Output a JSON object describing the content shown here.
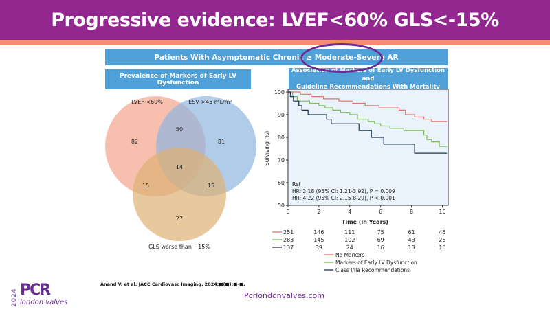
{
  "slide": {
    "title": "Progressive evidence: LVEF<60% GLS<-15%",
    "colors": {
      "header": "#92278f",
      "accent_band": "#f68b6a",
      "banner": "#4f9fd8",
      "highlight": "#6a2c91"
    }
  },
  "banners": {
    "top": "Patients With Asymptomatic Chronic ≥ Moderate-Severe AR",
    "left": "Prevalence of Markers of Early LV Dysfunction",
    "right_line1": "Association of Markers of Early LV Dysfunction and",
    "right_line2": "Guideline Recommendations With Mortality"
  },
  "footer": {
    "citation": "Anand V. et al. JACC Cardiovasc Imaging. 2024:■(■):■-■.",
    "website": "Pcrlondonvalves.com",
    "logo_year": "2024",
    "logo_brand": "PCR",
    "logo_sub": "london valves"
  },
  "chart_data": [
    {
      "type": "venn",
      "title": "Prevalence of Markers of Early LV Dysfunction",
      "sets": [
        {
          "name": "LVEF <60%",
          "color": "#f4a48a"
        },
        {
          "name": "ESV >45 mL/m²",
          "color": "#8fb6e0"
        },
        {
          "name": "GLS worse than −15%",
          "color": "#deb074"
        }
      ],
      "regions": {
        "LVEF_only": 82,
        "ESV_only": 81,
        "GLS_only": 27,
        "LVEF_ESV": 50,
        "LVEF_GLS": 15,
        "ESV_GLS": 15,
        "all_three": 14
      }
    },
    {
      "type": "line",
      "subtype": "kaplan-meier",
      "title": "Association of Markers of Early LV Dysfunction and Guideline Recommendations With Mortality",
      "xlabel": "Time (in Years)",
      "ylabel": "Surviving (%)",
      "xlim": [
        0,
        10.3
      ],
      "ylim": [
        50,
        100
      ],
      "xticks": [
        0,
        2,
        4,
        6,
        8,
        10
      ],
      "yticks": [
        50,
        60,
        70,
        80,
        90,
        100
      ],
      "series": [
        {
          "name": "No Markers",
          "color": "#e8736b",
          "label": "Ref",
          "steps": [
            [
              0,
              100
            ],
            [
              0.8,
              99
            ],
            [
              1.5,
              98
            ],
            [
              2.3,
              97
            ],
            [
              3.3,
              96
            ],
            [
              4.2,
              95
            ],
            [
              5,
              94
            ],
            [
              5.9,
              93
            ],
            [
              7.2,
              92
            ],
            [
              7.6,
              90
            ],
            [
              8.2,
              89
            ],
            [
              8.8,
              88
            ],
            [
              9.3,
              87
            ],
            [
              10.3,
              87
            ]
          ],
          "at_risk": [
            251,
            146,
            111,
            75,
            61,
            45
          ]
        },
        {
          "name": "Markers of Early LV Dysfunction",
          "color": "#7dbd5a",
          "label": "HR: 2.18 (95% CI: 1.21-3.92), P = 0.009",
          "steps": [
            [
              0,
              100
            ],
            [
              0.3,
              98
            ],
            [
              0.6,
              96
            ],
            [
              1.4,
              95
            ],
            [
              2,
              94
            ],
            [
              2.4,
              93
            ],
            [
              2.9,
              92
            ],
            [
              3.4,
              91
            ],
            [
              4,
              90
            ],
            [
              4.5,
              88
            ],
            [
              5.2,
              87
            ],
            [
              5.6,
              86
            ],
            [
              6,
              85
            ],
            [
              6.6,
              84
            ],
            [
              7.5,
              83
            ],
            [
              8.8,
              81
            ],
            [
              9,
              79
            ],
            [
              9.3,
              78
            ],
            [
              9.8,
              76
            ],
            [
              10.3,
              76
            ]
          ],
          "at_risk": [
            283,
            145,
            102,
            69,
            43,
            26
          ]
        },
        {
          "name": "Class I/IIa Recommendations",
          "color": "#1f3550",
          "label": "HR: 4.22 (95% CI: 2.15-8.29), P < 0.001",
          "steps": [
            [
              0,
              100
            ],
            [
              0.15,
              98
            ],
            [
              0.35,
              96
            ],
            [
              0.7,
              94
            ],
            [
              0.9,
              92
            ],
            [
              1.3,
              90
            ],
            [
              2.5,
              88
            ],
            [
              2.8,
              86
            ],
            [
              4.6,
              83
            ],
            [
              5.4,
              80
            ],
            [
              6.2,
              77
            ],
            [
              8.2,
              73
            ],
            [
              10.3,
              73
            ]
          ],
          "at_risk": [
            137,
            39,
            24,
            16,
            13,
            10
          ]
        }
      ],
      "at_risk_times": [
        0,
        2,
        4,
        6,
        8,
        10
      ],
      "legend": [
        "No Markers",
        "Markers of Early LV Dysfunction",
        "Class I/IIa Recommendations"
      ],
      "legend_position": "bottom"
    }
  ]
}
